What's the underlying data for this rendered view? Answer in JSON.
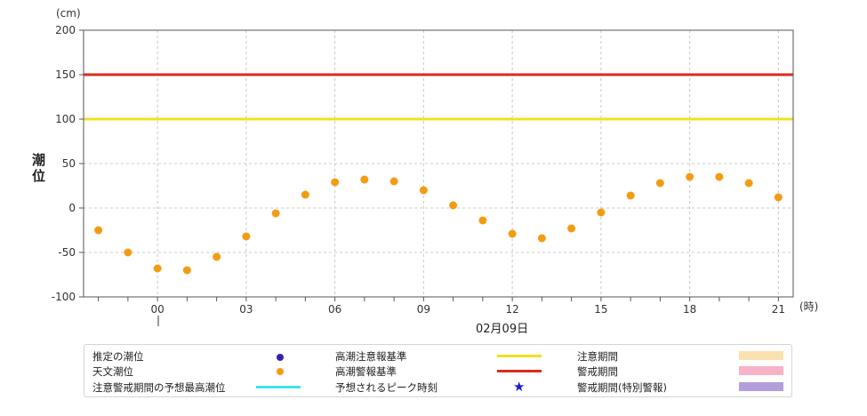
{
  "chart_data": {
    "type": "scatter",
    "y_unit": "(cm)",
    "y_label": "潮位",
    "x_unit": "(時)",
    "date_label": "02月09日",
    "ylim": [
      -100,
      200
    ],
    "y_ticks": [
      200,
      150,
      100,
      50,
      0,
      -50,
      -100
    ],
    "x_ticks": [
      "00",
      "03",
      "06",
      "09",
      "12",
      "15",
      "18",
      "21"
    ],
    "xlim": [
      -2.5,
      21.5
    ],
    "grid": true,
    "series": [
      {
        "name": "天文潮位",
        "color": "#f39c12",
        "x": [
          -2,
          -1,
          0,
          1,
          2,
          3,
          4,
          5,
          6,
          7,
          8,
          9,
          10,
          11,
          12,
          13,
          14,
          15,
          16,
          17,
          18,
          19,
          20,
          21
        ],
        "y": [
          -25,
          -50,
          -68,
          -70,
          -55,
          -32,
          -6,
          15,
          29,
          32,
          30,
          20,
          3,
          -14,
          -29,
          -34,
          -23,
          -5,
          14,
          28,
          35,
          35,
          28,
          12
        ]
      }
    ],
    "reference_lines": [
      {
        "name": "高潮注意報基準",
        "value": 100,
        "color": "#f0e020"
      },
      {
        "name": "高潮警報基準",
        "value": 150,
        "color": "#dd2b1c"
      }
    ]
  },
  "legend": {
    "items": [
      {
        "label": "推定の潮位",
        "symbol": "dot",
        "color": "#3b1fb0"
      },
      {
        "label": "天文潮位",
        "symbol": "dot",
        "color": "#f39c12"
      },
      {
        "label": "注意警戒期間の予想最高潮位",
        "symbol": "line",
        "color": "#3fe3e6"
      },
      {
        "label": "高潮注意報基準",
        "symbol": "line",
        "color": "#f0e020"
      },
      {
        "label": "高潮警報基準",
        "symbol": "line",
        "color": "#dd2b1c"
      },
      {
        "label": "予想されるピーク時刻",
        "symbol": "star",
        "color": "#1a1ad0"
      },
      {
        "label": "注意期間",
        "symbol": "swatch",
        "color": "#fce0b0"
      },
      {
        "label": "警戒期間",
        "symbol": "swatch",
        "color": "#f7b2c8"
      },
      {
        "label": "警戒期間(特別警報)",
        "symbol": "swatch",
        "color": "#b39ddb"
      }
    ]
  }
}
